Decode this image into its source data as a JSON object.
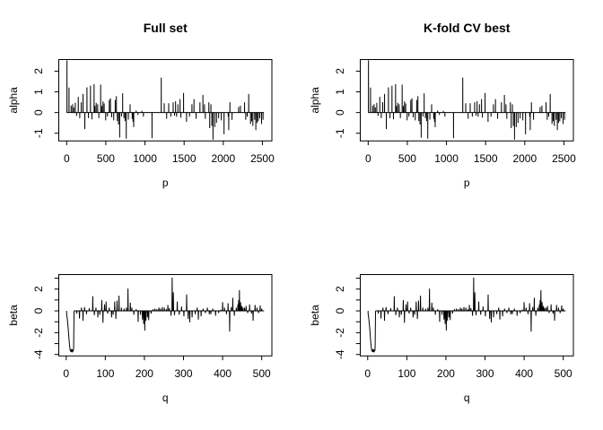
{
  "figure": {
    "background": "#ffffff",
    "line_color": "#000000",
    "box_color": "#000000"
  },
  "chart_data": {
    "type": "line",
    "grid": false,
    "legend": null,
    "columns": [
      {
        "title": "Full set"
      },
      {
        "title": "K-fold CV best"
      }
    ],
    "rows": [
      {
        "type": "line",
        "ylabel": "alpha",
        "xlabel": "p",
        "xlim": [
          -101,
          2621
        ],
        "ylim": [
          -1.37,
          2.56
        ],
        "x_start": 1,
        "x_end": 2520,
        "xticks": [
          {
            "v": 0,
            "label": "0"
          },
          {
            "v": 500,
            "label": "500"
          },
          {
            "v": 1000,
            "label": "1000"
          },
          {
            "v": 1500,
            "label": "1500"
          },
          {
            "v": 2000,
            "label": "2000"
          },
          {
            "v": 2500,
            "label": "2500"
          }
        ],
        "yticks": [
          {
            "v": -1,
            "label": "-1"
          },
          {
            "v": 0,
            "label": "0"
          },
          {
            "v": 1,
            "label": "1"
          },
          {
            "v": 2,
            "label": "2"
          }
        ],
        "spikes": [
          [
            4,
            2.52
          ],
          [
            30,
            1.21
          ],
          [
            57,
            0.33
          ],
          [
            76,
            0.4
          ],
          [
            91,
            0.25
          ],
          [
            110,
            0.47
          ],
          [
            126,
            -0.16
          ],
          [
            148,
            0.76
          ],
          [
            167,
            -0.27
          ],
          [
            186,
            0.5
          ],
          [
            209,
            0.9
          ],
          [
            232,
            -0.8
          ],
          [
            259,
            1.22
          ],
          [
            278,
            -0.27
          ],
          [
            304,
            1.3
          ],
          [
            323,
            -0.33
          ],
          [
            350,
            1.37
          ],
          [
            361,
            0.32
          ],
          [
            377,
            0.47
          ],
          [
            396,
            0.4
          ],
          [
            411,
            -0.27
          ],
          [
            434,
            1.35
          ],
          [
            449,
            0.32
          ],
          [
            464,
            0.54
          ],
          [
            479,
            0.44
          ],
          [
            498,
            -0.38
          ],
          [
            521,
            -0.19
          ],
          [
            544,
            0.61
          ],
          [
            559,
            0.69
          ],
          [
            575,
            -0.23
          ],
          [
            601,
            -0.38
          ],
          [
            620,
            0.61
          ],
          [
            635,
            0.79
          ],
          [
            647,
            -0.41
          ],
          [
            662,
            -0.58
          ],
          [
            677,
            -1.21
          ],
          [
            700,
            -0.19
          ],
          [
            715,
            0.93
          ],
          [
            731,
            -0.27
          ],
          [
            746,
            -0.41
          ],
          [
            761,
            -1.26
          ],
          [
            788,
            -0.34
          ],
          [
            810,
            0.4
          ],
          [
            837,
            -0.3
          ],
          [
            848,
            -0.45
          ],
          [
            856,
            -0.7
          ],
          [
            887,
            0.1
          ],
          [
            910,
            -0.12
          ],
          [
            960,
            0.08
          ],
          [
            980,
            -0.2
          ],
          [
            1090,
            -1.24
          ],
          [
            1208,
            1.69
          ],
          [
            1246,
            0.45
          ],
          [
            1277,
            -0.3
          ],
          [
            1303,
            0.45
          ],
          [
            1330,
            -0.2
          ],
          [
            1360,
            0.5
          ],
          [
            1378,
            -0.15
          ],
          [
            1391,
            0.55
          ],
          [
            1404,
            -0.2
          ],
          [
            1421,
            0.4
          ],
          [
            1448,
            0.65
          ],
          [
            1459,
            -0.25
          ],
          [
            1493,
            0.95
          ],
          [
            1531,
            -0.45
          ],
          [
            1569,
            -0.2
          ],
          [
            1600,
            0.4
          ],
          [
            1626,
            0.65
          ],
          [
            1653,
            -0.3
          ],
          [
            1702,
            0.5
          ],
          [
            1740,
            0.85
          ],
          [
            1760,
            0.4
          ],
          [
            1771,
            -0.3
          ],
          [
            1816,
            0.5
          ],
          [
            1827,
            -0.75
          ],
          [
            1842,
            0.4
          ],
          [
            1854,
            -0.65
          ],
          [
            1869,
            -1.31
          ],
          [
            1891,
            -0.7
          ],
          [
            1914,
            -0.5
          ],
          [
            1941,
            -0.28
          ],
          [
            1975,
            -0.38
          ],
          [
            2010,
            -1.05
          ],
          [
            2063,
            -0.2
          ],
          [
            2070,
            -0.85
          ],
          [
            2085,
            0.5
          ],
          [
            2112,
            -0.35
          ],
          [
            2196,
            0.27
          ],
          [
            2219,
            0.33
          ],
          [
            2272,
            0.5
          ],
          [
            2287,
            -0.35
          ],
          [
            2306,
            -0.2
          ],
          [
            2325,
            0.9
          ],
          [
            2348,
            -0.55
          ],
          [
            2363,
            -0.42
          ],
          [
            2378,
            -0.65
          ],
          [
            2401,
            -0.35
          ],
          [
            2416,
            -0.85
          ],
          [
            2431,
            -0.5
          ],
          [
            2447,
            -0.42
          ],
          [
            2466,
            -0.28
          ],
          [
            2489,
            -0.55
          ],
          [
            2508,
            -0.35
          ]
        ]
      },
      {
        "type": "line",
        "ylabel": "beta",
        "xlabel": "q",
        "xlim": [
          -19,
          526
        ],
        "ylim": [
          -4.13,
          3.33
        ],
        "x_start": 1,
        "x_end": 506,
        "xticks": [
          {
            "v": 0,
            "label": "0"
          },
          {
            "v": 100,
            "label": "100"
          },
          {
            "v": 200,
            "label": "200"
          },
          {
            "v": 300,
            "label": "300"
          },
          {
            "v": 400,
            "label": "400"
          },
          {
            "v": 500,
            "label": "500"
          }
        ],
        "yticks": [
          {
            "v": -4,
            "label": "-4"
          },
          {
            "v": -3,
            "label": ""
          },
          {
            "v": -2,
            "label": "-2"
          },
          {
            "v": -1,
            "label": ""
          },
          {
            "v": 0,
            "label": "0"
          },
          {
            "v": 1,
            "label": ""
          },
          {
            "v": 2,
            "label": "2"
          },
          {
            "v": 3,
            "label": ""
          }
        ],
        "spikes": [
          [
            1,
            -0.25
          ],
          [
            2,
            -0.5
          ],
          [
            3,
            -0.8
          ],
          [
            4,
            -1.15
          ],
          [
            5,
            -1.55
          ],
          [
            6,
            -2.0
          ],
          [
            7,
            -2.5
          ],
          [
            8,
            -2.95
          ],
          [
            9,
            -3.3
          ],
          [
            10,
            -3.55
          ],
          [
            11,
            -3.72
          ],
          [
            12,
            -3.55
          ],
          [
            13,
            -3.78
          ],
          [
            14,
            -3.5
          ],
          [
            15,
            -3.68
          ],
          [
            16,
            -3.8
          ],
          [
            17,
            -3.55
          ],
          [
            18,
            -3.7
          ],
          [
            19,
            -3.45
          ],
          [
            20,
            -0.1
          ],
          [
            27,
            -0.25
          ],
          [
            34,
            -0.7
          ],
          [
            39,
            0.3
          ],
          [
            43,
            -0.9
          ],
          [
            47,
            0.35
          ],
          [
            52,
            -0.3
          ],
          [
            59,
            0.25
          ],
          [
            68,
            1.35
          ],
          [
            72,
            -0.4
          ],
          [
            76,
            0.3
          ],
          [
            81,
            -0.6
          ],
          [
            86,
            -0.35
          ],
          [
            91,
            1.0
          ],
          [
            94,
            -1.1
          ],
          [
            98,
            0.6
          ],
          [
            102,
            0.85
          ],
          [
            106,
            -0.25
          ],
          [
            110,
            0.3
          ],
          [
            116,
            -0.6
          ],
          [
            120,
            -0.35
          ],
          [
            124,
            0.85
          ],
          [
            127,
            -0.75
          ],
          [
            130,
            0.95
          ],
          [
            135,
            1.4
          ],
          [
            141,
            0.3
          ],
          [
            148,
            0.2
          ],
          [
            154,
            0.3
          ],
          [
            158,
            2.05
          ],
          [
            164,
            0.75
          ],
          [
            168,
            0.3
          ],
          [
            173,
            -0.35
          ],
          [
            179,
            0.15
          ],
          [
            184,
            -1.0
          ],
          [
            190,
            -0.35
          ],
          [
            195,
            -0.8
          ],
          [
            198,
            -1.2
          ],
          [
            201,
            -1.8
          ],
          [
            204,
            -0.9
          ],
          [
            208,
            -0.6
          ],
          [
            211,
            -0.85
          ],
          [
            217,
            -0.25
          ],
          [
            222,
            0.15
          ],
          [
            227,
            0.2
          ],
          [
            232,
            0.15
          ],
          [
            237,
            0.3
          ],
          [
            241,
            0.2
          ],
          [
            246,
            0.35
          ],
          [
            251,
            0.3
          ],
          [
            256,
            0.15
          ],
          [
            260,
            0.55
          ],
          [
            264,
            0.25
          ],
          [
            268,
            -0.45
          ],
          [
            271,
            3.05
          ],
          [
            274,
            1.7
          ],
          [
            277,
            -0.4
          ],
          [
            284,
            0.85
          ],
          [
            289,
            -0.35
          ],
          [
            295,
            0.4
          ],
          [
            301,
            -0.5
          ],
          [
            308,
            1.5
          ],
          [
            312,
            -0.75
          ],
          [
            316,
            -1.05
          ],
          [
            322,
            -0.6
          ],
          [
            330,
            -0.3
          ],
          [
            335,
            0.3
          ],
          [
            338,
            -0.8
          ],
          [
            345,
            -0.5
          ],
          [
            350,
            0.2
          ],
          [
            356,
            -0.2
          ],
          [
            361,
            0.3
          ],
          [
            366,
            -0.3
          ],
          [
            370,
            -0.3
          ],
          [
            375,
            0.2
          ],
          [
            382,
            -0.45
          ],
          [
            390,
            -0.2
          ],
          [
            395,
            0.1
          ],
          [
            400,
            0.8
          ],
          [
            405,
            0.3
          ],
          [
            410,
            -0.3
          ],
          [
            414,
            0.7
          ],
          [
            418,
            -1.9
          ],
          [
            422,
            0.35
          ],
          [
            426,
            1.2
          ],
          [
            430,
            -0.45
          ],
          [
            435,
            0.3
          ],
          [
            439,
            0.6
          ],
          [
            441,
            1.0
          ],
          [
            443,
            1.9
          ],
          [
            446,
            0.8
          ],
          [
            449,
            0.45
          ],
          [
            452,
            0.3
          ],
          [
            456,
            0.3
          ],
          [
            460,
            0.45
          ],
          [
            464,
            -0.2
          ],
          [
            469,
            0.6
          ],
          [
            474,
            -0.25
          ],
          [
            478,
            -0.9
          ],
          [
            483,
            0.55
          ],
          [
            488,
            0.3
          ],
          [
            492,
            -0.2
          ],
          [
            496,
            0.5
          ],
          [
            500,
            0.2
          ]
        ]
      }
    ]
  }
}
